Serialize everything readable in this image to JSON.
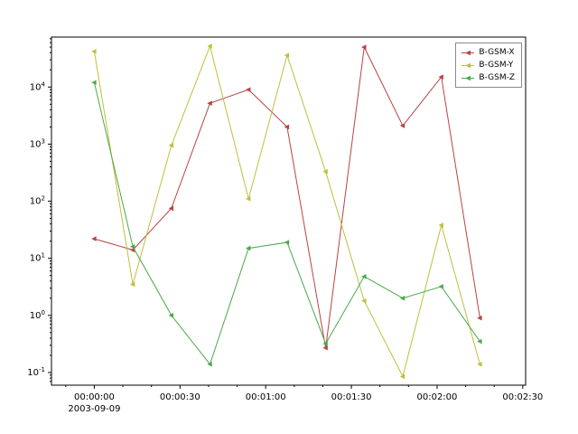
{
  "figure": {
    "background": "#ffffff",
    "frame_color": "#000000"
  },
  "chart_data": {
    "type": "line",
    "yscale": "log",
    "grid": false,
    "xlim_seconds": [
      -15,
      151
    ],
    "ylim": [
      0.06,
      75000
    ],
    "x_major_ticks_seconds": [
      0,
      30,
      60,
      90,
      120,
      150
    ],
    "x_tick_labels": [
      "00:00:00",
      "00:00:30",
      "00:01:00",
      "00:01:30",
      "00:02:00",
      "00:02:30"
    ],
    "x_date_label": "2003-09-09",
    "y_tick_exponents": [
      -1,
      0,
      1,
      2,
      3,
      4
    ],
    "x_seconds": [
      0,
      13.5,
      27,
      40.5,
      54,
      67.5,
      81,
      94.5,
      108,
      121.5,
      135
    ],
    "series": [
      {
        "name": "B-GSM-X",
        "color": "#b94343",
        "values": [
          22,
          14,
          75,
          5200,
          9000,
          2000,
          0.27,
          50000,
          2100,
          15000,
          0.9
        ]
      },
      {
        "name": "B-GSM-Y",
        "color": "#bfbf3d",
        "values": [
          42000,
          3.5,
          950,
          52000,
          110,
          36000,
          330,
          1.8,
          0.085,
          38,
          0.14
        ]
      },
      {
        "name": "B-GSM-Z",
        "color": "#4aaa4a",
        "values": [
          12000,
          16,
          1.0,
          0.14,
          15,
          19,
          0.32,
          4.8,
          2.0,
          3.2,
          0.35
        ]
      }
    ],
    "legend": {
      "position": "upper right",
      "labels": [
        "B-GSM-X",
        "B-GSM-Y",
        "B-GSM-Z"
      ]
    }
  }
}
